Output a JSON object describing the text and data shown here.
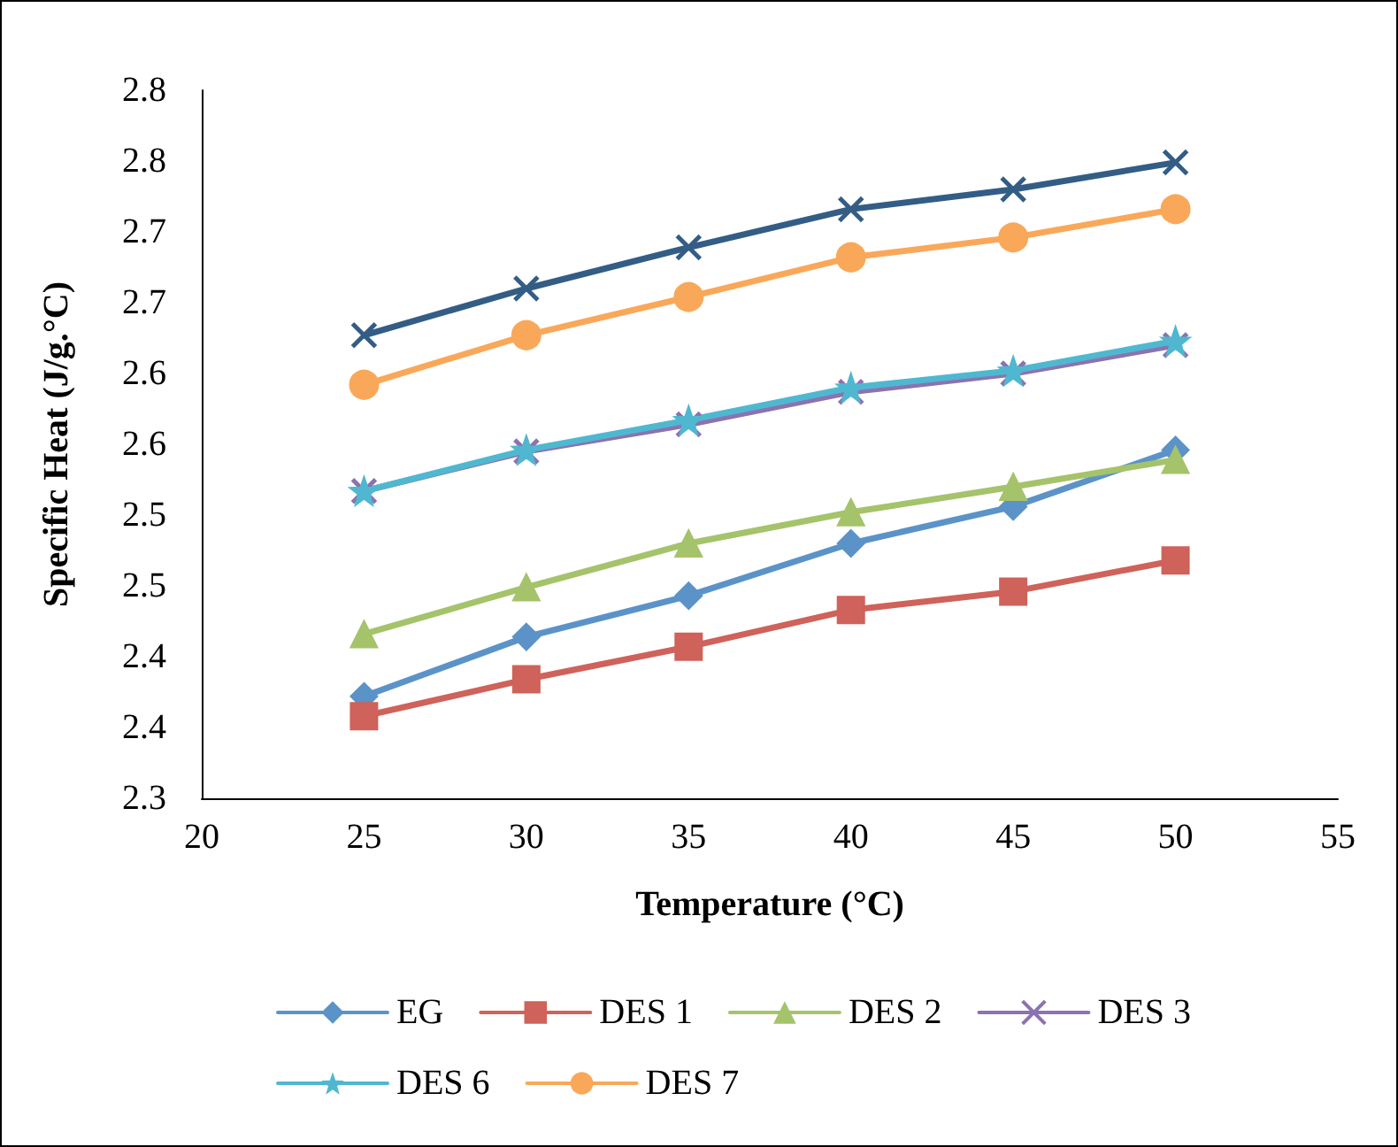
{
  "chart_data": {
    "type": "line",
    "xlabel": "Temperature (°C)",
    "ylabel": "Specific Heat (J/g.°C)",
    "x": [
      25,
      30,
      35,
      40,
      45,
      50
    ],
    "xlim": [
      20,
      55
    ],
    "xticks": [
      20,
      25,
      30,
      35,
      40,
      45,
      50,
      55
    ],
    "ylim": [
      2.3,
      2.8
    ],
    "yticks": [
      {
        "value": 2.3,
        "label": "2.3"
      },
      {
        "value": 2.35,
        "label": "2.4"
      },
      {
        "value": 2.4,
        "label": "2.4"
      },
      {
        "value": 2.45,
        "label": "2.5"
      },
      {
        "value": 2.5,
        "label": "2.5"
      },
      {
        "value": 2.55,
        "label": "2.6"
      },
      {
        "value": 2.6,
        "label": "2.6"
      },
      {
        "value": 2.65,
        "label": "2.7"
      },
      {
        "value": 2.7,
        "label": "2.7"
      },
      {
        "value": 2.75,
        "label": "2.8"
      },
      {
        "value": 2.8,
        "label": "2.8"
      }
    ],
    "grid": false,
    "legend": "bottom",
    "line_style": "solid",
    "series": [
      {
        "name": "EG",
        "color": "#5b93c8",
        "marker": "diamond",
        "values": [
          2.372,
          2.414,
          2.443,
          2.48,
          2.506,
          2.546
        ]
      },
      {
        "name": "DES 1",
        "color": "#cf625a",
        "marker": "square",
        "values": [
          2.358,
          2.384,
          2.407,
          2.433,
          2.446,
          2.468
        ]
      },
      {
        "name": "DES 2",
        "color": "#a5c36a",
        "marker": "triangle",
        "values": [
          2.416,
          2.449,
          2.48,
          2.502,
          2.52,
          2.539
        ]
      },
      {
        "name": "DES 3",
        "color": "#8c72b0",
        "marker": "cross",
        "values": [
          2.517,
          2.545,
          2.564,
          2.587,
          2.6,
          2.62
        ]
      },
      {
        "name": "DES 6",
        "color": "#4fb8d0",
        "marker": "star",
        "values": [
          2.517,
          2.546,
          2.567,
          2.59,
          2.602,
          2.623
        ]
      },
      {
        "name": "DES 7",
        "color": "#f9a85a",
        "marker": "circle",
        "values": [
          2.592,
          2.627,
          2.654,
          2.682,
          2.696,
          2.716
        ]
      },
      {
        "color": "#335d85",
        "marker": "cross",
        "values": [
          2.627,
          2.66,
          2.689,
          2.716,
          2.73,
          2.749
        ]
      }
    ]
  }
}
